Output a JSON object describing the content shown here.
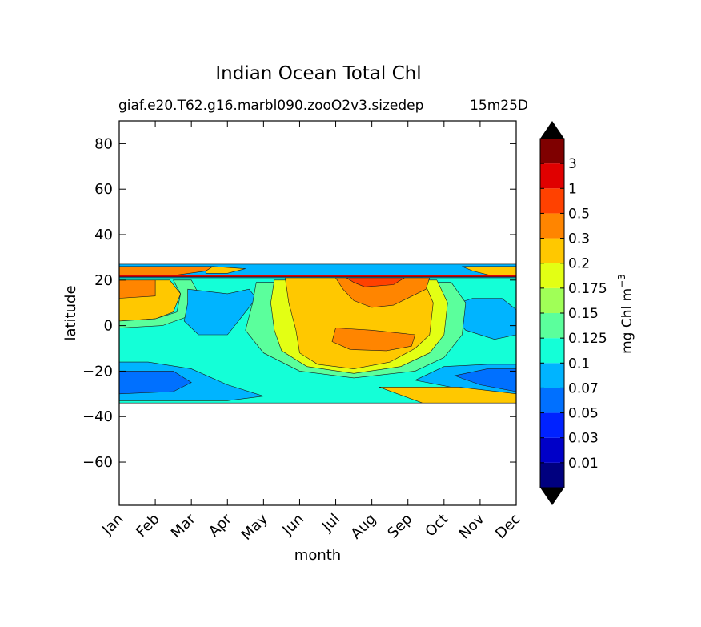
{
  "chart_data": {
    "type": "heatmap",
    "subtype": "filled-contour",
    "title": "Indian Ocean Total Chl",
    "subtitle_left": "giaf.e20.T62.g16.marbl090.zooO2v3.sizedep",
    "subtitle_right": "15m25D",
    "xlabel": "month",
    "ylabel": "latitude",
    "x_ticks": [
      "Jan",
      "Feb",
      "Mar",
      "Apr",
      "May",
      "Jun",
      "Jul",
      "Aug",
      "Sep",
      "Oct",
      "Nov",
      "Dec"
    ],
    "x_range": [
      0,
      11
    ],
    "y_ticks": [
      80,
      60,
      40,
      20,
      0,
      -20,
      -40,
      -60
    ],
    "y_tick_labels": [
      "80",
      "60",
      "40",
      "20",
      "0",
      "−20",
      "−40",
      "−60"
    ],
    "ylim": [
      -79,
      90
    ],
    "data_lat_range": [
      -34,
      27
    ],
    "colorbar": {
      "label": "mg Chl m",
      "label_exponent": "−3",
      "levels": [
        "0.01",
        "0.03",
        "0.05",
        "0.07",
        "0.1",
        "0.125",
        "0.15",
        "0.175",
        "0.2",
        "0.3",
        "0.5",
        "1",
        "3"
      ],
      "colors": [
        "#00007f",
        "#0000c8",
        "#0022ff",
        "#0070ff",
        "#00b4ff",
        "#14ffd7",
        "#5bff9c",
        "#a0ff57",
        "#e3ff14",
        "#ffc800",
        "#ff8500",
        "#ff4100",
        "#e00000",
        "#7f0000"
      ],
      "extend": "both",
      "under_color": "#000000",
      "over_color": "#000000"
    },
    "regions": [
      {
        "name": "band-north-top",
        "level_index": 4,
        "points": [
          [
            0,
            27
          ],
          [
            11,
            27
          ],
          [
            11,
            21
          ],
          [
            0,
            21
          ]
        ]
      },
      {
        "name": "band-north-orange-jan",
        "level_index": 10,
        "points": [
          [
            0,
            26
          ],
          [
            2.6,
            26
          ],
          [
            2.4,
            24
          ],
          [
            1.5,
            22
          ],
          [
            0,
            22
          ]
        ]
      },
      {
        "name": "band-north-yellow-jan",
        "level_index": 9,
        "points": [
          [
            2.6,
            26
          ],
          [
            3.5,
            25
          ],
          [
            3,
            23
          ],
          [
            2.4,
            23
          ],
          [
            2.4,
            24
          ]
        ]
      },
      {
        "name": "band-north-dec",
        "level_index": 9,
        "points": [
          [
            9.5,
            26
          ],
          [
            11,
            26
          ],
          [
            11,
            22
          ],
          [
            10.3,
            22
          ],
          [
            9.8,
            24
          ]
        ]
      },
      {
        "name": "thin-redline",
        "level_index": 12,
        "points": [
          [
            0,
            22.3
          ],
          [
            11,
            22.3
          ],
          [
            11,
            21.4
          ],
          [
            0,
            21.4
          ]
        ]
      },
      {
        "name": "base-cyan",
        "level_index": 5,
        "points": [
          [
            0,
            21
          ],
          [
            11,
            21
          ],
          [
            11,
            -34
          ],
          [
            0,
            -34
          ]
        ]
      },
      {
        "name": "jan-north-yellow",
        "level_index": 9,
        "points": [
          [
            0,
            20
          ],
          [
            1.4,
            20
          ],
          [
            1.7,
            14
          ],
          [
            1.5,
            6
          ],
          [
            1,
            3
          ],
          [
            0,
            2
          ]
        ]
      },
      {
        "name": "jan-north-orange",
        "level_index": 10,
        "points": [
          [
            0,
            20
          ],
          [
            1,
            20
          ],
          [
            1,
            13
          ],
          [
            0,
            12
          ]
        ]
      },
      {
        "name": "jan-green",
        "level_index": 6,
        "points": [
          [
            0,
            2
          ],
          [
            1,
            3
          ],
          [
            1.6,
            6
          ],
          [
            1.7,
            14
          ],
          [
            1.5,
            20
          ],
          [
            2,
            20
          ],
          [
            2.2,
            14
          ],
          [
            1.9,
            4
          ],
          [
            1.2,
            0
          ],
          [
            0,
            -1
          ]
        ]
      },
      {
        "name": "feb-apr-blue",
        "level_index": 4,
        "points": [
          [
            1.9,
            16
          ],
          [
            3,
            14
          ],
          [
            3.6,
            16
          ],
          [
            3.8,
            12
          ],
          [
            3.4,
            4
          ],
          [
            3,
            -4
          ],
          [
            2.2,
            -4
          ],
          [
            1.8,
            2
          ],
          [
            1.9,
            10
          ]
        ]
      },
      {
        "name": "dec-blue",
        "level_index": 4,
        "points": [
          [
            9,
            8
          ],
          [
            9.8,
            12
          ],
          [
            10.6,
            12
          ],
          [
            11,
            7
          ],
          [
            11,
            -4
          ],
          [
            10.4,
            -6
          ],
          [
            9.6,
            -2
          ]
        ]
      },
      {
        "name": "summer-green",
        "level_index": 6,
        "points": [
          [
            3.8,
            19
          ],
          [
            9.2,
            19
          ],
          [
            9.6,
            10
          ],
          [
            9.5,
            -4
          ],
          [
            9,
            -14
          ],
          [
            8.2,
            -20
          ],
          [
            6.5,
            -23
          ],
          [
            5,
            -20
          ],
          [
            4,
            -12
          ],
          [
            3.5,
            -2
          ],
          [
            3.7,
            10
          ]
        ]
      },
      {
        "name": "summer-lime",
        "level_index": 8,
        "points": [
          [
            4.3,
            20
          ],
          [
            8.8,
            20
          ],
          [
            9.1,
            10
          ],
          [
            9,
            -4
          ],
          [
            8.6,
            -12
          ],
          [
            7.8,
            -18
          ],
          [
            6.5,
            -21
          ],
          [
            5.2,
            -18
          ],
          [
            4.5,
            -11
          ],
          [
            4.3,
            -2
          ],
          [
            4.2,
            10
          ]
        ]
      },
      {
        "name": "summer-yellow",
        "level_index": 9,
        "points": [
          [
            4.6,
            21
          ],
          [
            8.4,
            21
          ],
          [
            8.7,
            10
          ],
          [
            8.6,
            -4
          ],
          [
            8.2,
            -10
          ],
          [
            7.5,
            -16
          ],
          [
            6.5,
            -19
          ],
          [
            5.5,
            -17
          ],
          [
            5,
            -12
          ],
          [
            4.9,
            -2
          ],
          [
            4.7,
            10
          ]
        ]
      },
      {
        "name": "summer-core-orange",
        "level_index": 10,
        "points": [
          [
            6,
            -1
          ],
          [
            7,
            -2
          ],
          [
            8.2,
            -4
          ],
          [
            8.1,
            -9
          ],
          [
            7.4,
            -11
          ],
          [
            6.4,
            -10.5
          ],
          [
            5.9,
            -7
          ]
        ]
      },
      {
        "name": "summer-north-orange",
        "level_index": 10,
        "points": [
          [
            6,
            21
          ],
          [
            8.6,
            21
          ],
          [
            8.5,
            16
          ],
          [
            7.6,
            9
          ],
          [
            7,
            8
          ],
          [
            6.5,
            11
          ],
          [
            6.2,
            16
          ]
        ]
      },
      {
        "name": "summer-north-red",
        "level_index": 11,
        "points": [
          [
            6.3,
            21
          ],
          [
            7.9,
            21
          ],
          [
            7.6,
            18
          ],
          [
            6.8,
            17
          ],
          [
            6.5,
            19
          ]
        ]
      },
      {
        "name": "summer-south-blue",
        "level_index": 4,
        "points": [
          [
            0,
            -16
          ],
          [
            0.8,
            -16
          ],
          [
            2,
            -19
          ],
          [
            3,
            -26
          ],
          [
            4,
            -31
          ],
          [
            3,
            -33
          ],
          [
            0,
            -33
          ]
        ]
      },
      {
        "name": "winter-south-blue",
        "level_index": 3,
        "points": [
          [
            0,
            -20
          ],
          [
            1.5,
            -20
          ],
          [
            2,
            -25
          ],
          [
            1.5,
            -29
          ],
          [
            0,
            -30
          ]
        ]
      },
      {
        "name": "dec-south-blue",
        "level_index": 4,
        "points": [
          [
            8.2,
            -24
          ],
          [
            9,
            -18
          ],
          [
            10.2,
            -17
          ],
          [
            11,
            -17
          ],
          [
            11,
            -30
          ],
          [
            9.5,
            -28
          ]
        ]
      },
      {
        "name": "dec-south-darkblue",
        "level_index": 3,
        "points": [
          [
            9.3,
            -22
          ],
          [
            10.2,
            -19
          ],
          [
            11,
            -19
          ],
          [
            11,
            -29
          ],
          [
            10,
            -26
          ]
        ]
      },
      {
        "name": "south-orange",
        "level_index": 10,
        "points": [
          [
            7.8,
            -28
          ],
          [
            9.6,
            -28
          ],
          [
            11,
            -31
          ],
          [
            11,
            -33
          ],
          [
            8.4,
            -33
          ]
        ]
      },
      {
        "name": "south-yellow",
        "level_index": 9,
        "points": [
          [
            7.2,
            -27
          ],
          [
            9.4,
            -27
          ],
          [
            11,
            -30
          ],
          [
            11,
            -34
          ],
          [
            8.4,
            -34
          ]
        ]
      }
    ]
  }
}
